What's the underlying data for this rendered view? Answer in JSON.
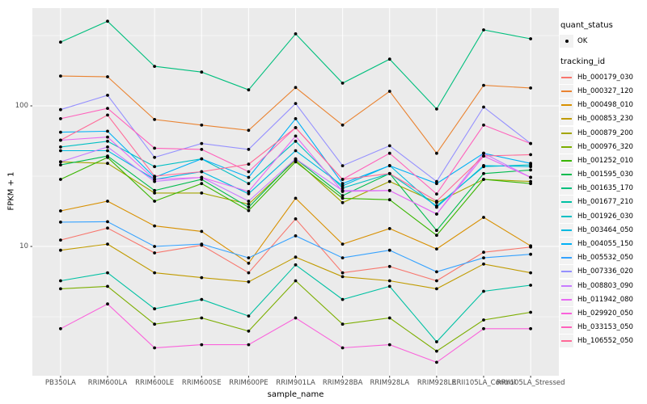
{
  "chart_data": {
    "type": "line",
    "title": "",
    "xlabel": "sample_name",
    "ylabel": "FPKM + 1",
    "y_scale": "log10",
    "ylim": [
      1.204,
      496
    ],
    "grid": true,
    "legend_position": "right",
    "panel_background": "#EBEBEB",
    "gridline_color": "#FFFFFF",
    "point_color": "#000000",
    "tick_label_color": "#4D4D4D",
    "y_ticks": [
      {
        "label": "100",
        "value": 100
      },
      {
        "label": "10",
        "value": 10
      }
    ],
    "y_minor_gridlines": [
      3.162,
      31.62,
      316.2
    ],
    "categories": [
      "PB350LA",
      "RRIM600LA",
      "RRIM600LE",
      "RRIM600SE",
      "RRIM600PE",
      "RRIM901LA",
      "RRIM928BA",
      "RRIM928LA",
      "RRIM928LE",
      "RRII105LA_Control",
      "RRII105LA_Stressed"
    ],
    "series": [
      {
        "name": "Hb_000179_030",
        "color": "#F8766D",
        "values": [
          11.1,
          13.5,
          9.0,
          10.2,
          6.5,
          15.7,
          6.5,
          7.2,
          5.7,
          9.1,
          9.9
        ]
      },
      {
        "name": "Hb_000327_120",
        "color": "#EA8331",
        "values": [
          163,
          161,
          80,
          73,
          67,
          135,
          73,
          127,
          46,
          140,
          134
        ]
      },
      {
        "name": "Hb_000498_010",
        "color": "#D89000",
        "values": [
          17.9,
          21,
          14,
          12.8,
          7.6,
          22,
          10.4,
          13.4,
          9.6,
          16.1,
          10.1
        ]
      },
      {
        "name": "Hb_000853_230",
        "color": "#C09B00",
        "values": [
          9.4,
          10.4,
          6.5,
          6.0,
          5.6,
          8.4,
          6.1,
          5.7,
          5.0,
          7.5,
          6.5
        ]
      },
      {
        "name": "Hb_000879_200",
        "color": "#A3A500",
        "values": [
          40,
          39,
          24,
          24,
          20,
          41,
          20.5,
          29,
          20.5,
          30,
          29
        ]
      },
      {
        "name": "Hb_000976_320",
        "color": "#7CAE00",
        "values": [
          5.0,
          5.2,
          2.8,
          3.1,
          2.5,
          5.7,
          2.8,
          3.1,
          1.8,
          3.0,
          3.4
        ]
      },
      {
        "name": "Hb_001252_010",
        "color": "#39B600",
        "values": [
          30,
          43,
          21,
          28,
          18,
          40,
          22,
          21.5,
          12,
          30,
          28
        ]
      },
      {
        "name": "Hb_001595_030",
        "color": "#00BB4E",
        "values": [
          38,
          44,
          25,
          30,
          19,
          42,
          23,
          33,
          13,
          33,
          35
        ]
      },
      {
        "name": "Hb_001635_170",
        "color": "#00BF7D",
        "values": [
          284,
          400,
          191,
          174,
          130,
          325,
          145,
          215,
          95,
          347,
          300
        ]
      },
      {
        "name": "Hb_001677_210",
        "color": "#00C1A3",
        "values": [
          5.7,
          6.5,
          3.6,
          4.2,
          3.2,
          7.4,
          4.2,
          5.2,
          2.1,
          4.8,
          5.3
        ]
      },
      {
        "name": "Hb_001926_030",
        "color": "#00BFC4",
        "values": [
          51,
          56,
          37,
          42,
          28,
          56,
          26,
          33,
          19.4,
          37,
          38
        ]
      },
      {
        "name": "Hb_003464_050",
        "color": "#00BAE0",
        "values": [
          48,
          48,
          30,
          34,
          23.7,
          48,
          27,
          37.6,
          19,
          37.6,
          37
        ]
      },
      {
        "name": "Hb_004055_150",
        "color": "#00B0F6",
        "values": [
          65,
          66,
          31,
          42,
          31,
          81,
          28,
          37.5,
          28,
          46,
          39
        ]
      },
      {
        "name": "Hb_005532_050",
        "color": "#35A2FF",
        "values": [
          14.9,
          15.0,
          10.0,
          10.4,
          8.3,
          11.9,
          8.3,
          9.4,
          6.6,
          8.3,
          8.8
        ]
      },
      {
        "name": "Hb_007336_020",
        "color": "#9590FF",
        "values": [
          94,
          119,
          43,
          54,
          49,
          104,
          37.5,
          52,
          29,
          98,
          54
        ]
      },
      {
        "name": "Hb_008803_090",
        "color": "#C77CFF",
        "values": [
          40,
          51,
          29,
          31,
          21,
          42,
          25,
          25,
          17,
          46,
          31
        ]
      },
      {
        "name": "Hb_011942_080",
        "color": "#E76BF3",
        "values": [
          57,
          60,
          30,
          31,
          24.6,
          61,
          24.6,
          25,
          17,
          44,
          31
        ]
      },
      {
        "name": "Hb_029920_050",
        "color": "#FA62DB",
        "values": [
          2.6,
          3.9,
          1.9,
          2.0,
          2.0,
          3.1,
          1.9,
          2.0,
          1.5,
          2.6,
          2.6
        ]
      },
      {
        "name": "Hb_033153_050",
        "color": "#FF62BC",
        "values": [
          81,
          96,
          50,
          49,
          34,
          70,
          30,
          46,
          23.6,
          73,
          54
        ]
      },
      {
        "name": "Hb_106552_050",
        "color": "#FF6A98",
        "values": [
          57,
          86,
          31.6,
          34,
          38.5,
          70,
          30,
          33,
          21,
          44,
          45
        ]
      }
    ]
  },
  "legend": {
    "quant_status_title": "quant_status",
    "quant_status_items": [
      {
        "label": "OK"
      }
    ],
    "tracking_id_title": "tracking_id",
    "key_background": "#F2F2F2"
  }
}
